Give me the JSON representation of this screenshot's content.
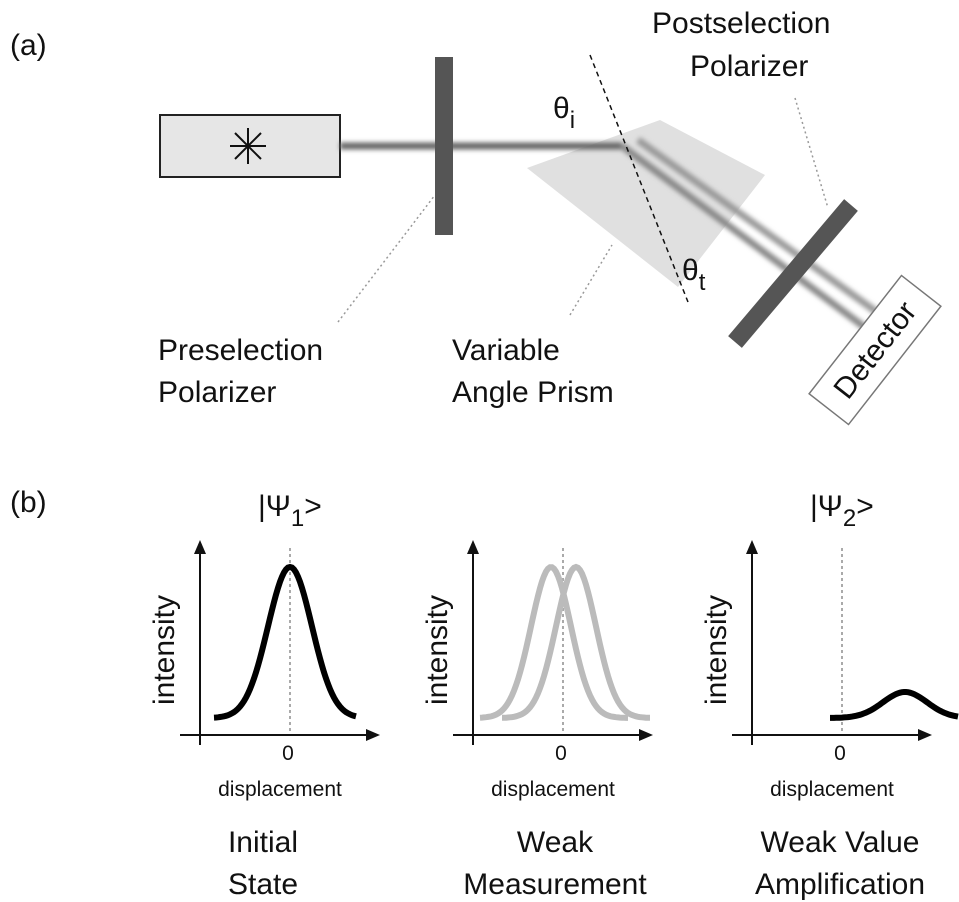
{
  "panel_a": {
    "label": "(a)",
    "preselection_polarizer": [
      "Preselection",
      "Polarizer"
    ],
    "prism": [
      "Variable",
      "Angle Prism"
    ],
    "postselection_polarizer": [
      "Postselection",
      "Polarizer"
    ],
    "detector": "Detector",
    "theta_i": {
      "symbol": "θ",
      "sub": "i"
    },
    "theta_t": {
      "symbol": "θ",
      "sub": "t"
    }
  },
  "panel_b": {
    "label": "(b)",
    "plots": [
      {
        "state": {
          "prefix": "|Ψ",
          "sub": "1",
          "suffix": ">"
        },
        "y_label": "intensity",
        "x_tick": "0",
        "x_label": "displacement",
        "caption": [
          "Initial",
          "State"
        ]
      },
      {
        "y_label": "intensity",
        "x_tick": "0",
        "x_label": "displacement",
        "caption": [
          "Weak",
          "Measurement"
        ]
      },
      {
        "state": {
          "prefix": "|Ψ",
          "sub": "2",
          "suffix": ">"
        },
        "y_label": "intensity",
        "x_tick": "0",
        "x_label": "displacement",
        "caption": [
          "Weak Value",
          "Amplification"
        ]
      }
    ]
  }
}
